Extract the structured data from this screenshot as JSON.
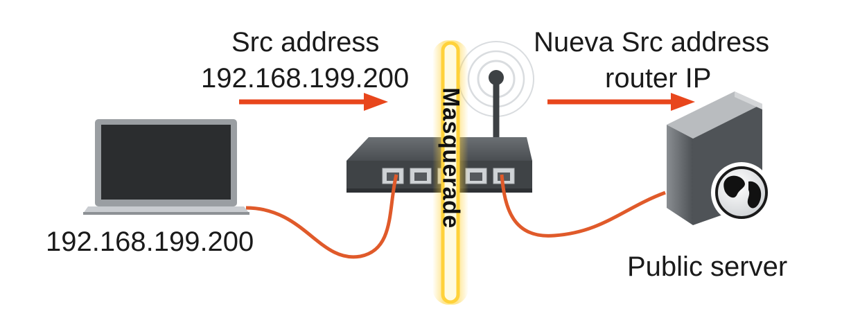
{
  "left_header": {
    "line1": "Src address",
    "line2": "192.168.199.200"
  },
  "right_header": {
    "line1": "Nueva Src address",
    "line2": "router IP"
  },
  "laptop_label": "192.168.199.200",
  "server_label": "Public server",
  "masquerade_label": "Masquerade",
  "colors": {
    "arrow": "#e8461c",
    "cable": "#e05a2a",
    "glow": "#ffd23a",
    "router_body": "#3f4346",
    "server_body": "#5b5f63"
  },
  "icons": {
    "client": "laptop-icon",
    "router": "router-icon",
    "server": "server-icon",
    "globe": "globe-icon"
  }
}
